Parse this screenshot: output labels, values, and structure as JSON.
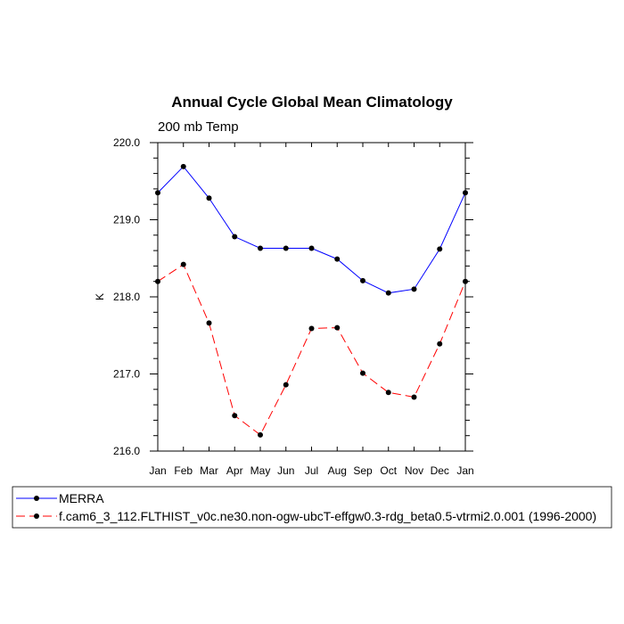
{
  "chart_data": {
    "type": "line",
    "title": "Annual Cycle Global Mean Climatology",
    "subtitle": "200 mb Temp",
    "xlabel": "",
    "ylabel": "K",
    "categories": [
      "Jan",
      "Feb",
      "Mar",
      "Apr",
      "May",
      "Jun",
      "Jul",
      "Aug",
      "Sep",
      "Oct",
      "Nov",
      "Dec",
      "Jan"
    ],
    "ylim": [
      216.0,
      220.0
    ],
    "yticks": [
      "216.0",
      "217.0",
      "218.0",
      "219.0",
      "220.0"
    ],
    "series": [
      {
        "name": "MERRA",
        "color": "#0000ff",
        "style": "solid",
        "values": [
          219.35,
          219.69,
          219.28,
          218.78,
          218.63,
          218.63,
          218.63,
          218.49,
          218.21,
          218.05,
          218.1,
          218.62,
          219.35
        ]
      },
      {
        "name": "f.cam6_3_112.FLTHIST_v0c.ne30.non-ogw-ubcT-effgw0.3-rdg_beta0.5-vtrmi2.0.001 (1996-2000)",
        "color": "#ff0000",
        "style": "dashed",
        "values": [
          218.2,
          218.42,
          217.66,
          216.46,
          216.21,
          216.86,
          217.59,
          217.6,
          217.01,
          216.76,
          216.7,
          217.39,
          218.2
        ]
      }
    ],
    "legend_position": "bottom",
    "grid": false
  }
}
